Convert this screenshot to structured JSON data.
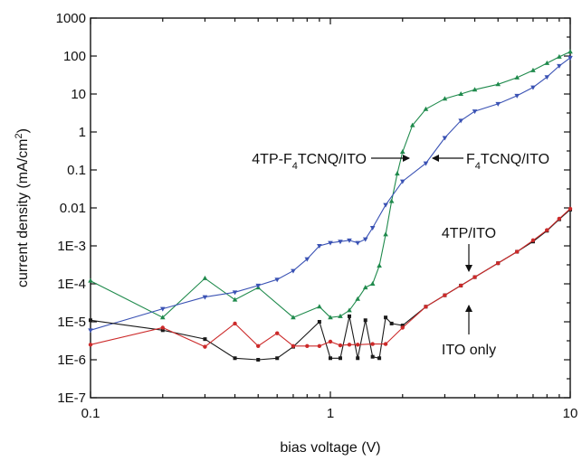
{
  "chart_data": {
    "type": "scatter",
    "x_scale": "log",
    "y_scale": "log",
    "xlim": [
      0.1,
      10
    ],
    "ylim": [
      1e-07,
      1000
    ],
    "xlabel": "bias voltage (V)",
    "ylabel_parts": {
      "main": "current density (mA/cm",
      "sup": "2",
      "end": ")"
    },
    "x_ticks": [
      {
        "value": 0.1,
        "label": "0.1"
      },
      {
        "value": 1,
        "label": "1"
      },
      {
        "value": 10,
        "label": "10"
      }
    ],
    "y_ticks": [
      {
        "value": 1000,
        "label": "1000"
      },
      {
        "value": 100,
        "label": "100"
      },
      {
        "value": 10,
        "label": "10"
      },
      {
        "value": 1,
        "label": "1"
      },
      {
        "value": 0.1,
        "label": "0.1"
      },
      {
        "value": 0.01,
        "label": "0.01"
      },
      {
        "value": 0.001,
        "label": "1E-3"
      },
      {
        "value": 0.0001,
        "label": "1E-4"
      },
      {
        "value": 1e-05,
        "label": "1E-5"
      },
      {
        "value": 1e-06,
        "label": "1E-6"
      },
      {
        "value": 1e-07,
        "label": "1E-7"
      }
    ],
    "grid": false,
    "series": [
      {
        "color": "#1f8a4c",
        "marker": "triangle-up",
        "label_parts": {
          "a": "4TP-F",
          "sub": "4",
          "b": "TCNQ/ITO"
        },
        "points": [
          [
            0.1,
            0.00012
          ],
          [
            0.2,
            1.3e-05
          ],
          [
            0.3,
            0.00014
          ],
          [
            0.4,
            3.8e-05
          ],
          [
            0.5,
            8e-05
          ],
          [
            0.7,
            1.3e-05
          ],
          [
            0.9,
            2.5e-05
          ],
          [
            1.0,
            1.3e-05
          ],
          [
            1.1,
            1.4e-05
          ],
          [
            1.2,
            2e-05
          ],
          [
            1.3,
            4e-05
          ],
          [
            1.4,
            8e-05
          ],
          [
            1.5,
            0.0001
          ],
          [
            1.6,
            0.0003
          ],
          [
            1.7,
            0.002
          ],
          [
            1.8,
            0.015
          ],
          [
            1.9,
            0.08
          ],
          [
            2.0,
            0.3
          ],
          [
            2.2,
            1.5
          ],
          [
            2.5,
            4.0
          ],
          [
            3.0,
            7.5
          ],
          [
            3.5,
            10
          ],
          [
            4.0,
            13
          ],
          [
            5.0,
            18
          ],
          [
            6.0,
            27
          ],
          [
            7.0,
            42
          ],
          [
            8.0,
            65
          ],
          [
            9.0,
            95
          ],
          [
            10.0,
            130
          ]
        ]
      },
      {
        "color": "#3a52b4",
        "marker": "triangle-down",
        "label_parts": {
          "a": "F",
          "sub": "4",
          "b": "TCNQ/ITO"
        },
        "points": [
          [
            0.1,
            6e-06
          ],
          [
            0.2,
            2.2e-05
          ],
          [
            0.3,
            4.5e-05
          ],
          [
            0.4,
            6e-05
          ],
          [
            0.5,
            9e-05
          ],
          [
            0.6,
            0.00013
          ],
          [
            0.7,
            0.00022
          ],
          [
            0.8,
            0.00045
          ],
          [
            0.9,
            0.001
          ],
          [
            1.0,
            0.0012
          ],
          [
            1.1,
            0.0013
          ],
          [
            1.2,
            0.0014
          ],
          [
            1.3,
            0.0012
          ],
          [
            1.4,
            0.0015
          ],
          [
            1.5,
            0.003
          ],
          [
            1.7,
            0.012
          ],
          [
            2.0,
            0.05
          ],
          [
            2.5,
            0.15
          ],
          [
            3.0,
            0.7
          ],
          [
            3.5,
            2.0
          ],
          [
            4.0,
            3.5
          ],
          [
            5.0,
            5.5
          ],
          [
            6.0,
            9.0
          ],
          [
            7.0,
            15
          ],
          [
            8.0,
            28
          ],
          [
            9.0,
            55
          ],
          [
            10.0,
            90
          ]
        ]
      },
      {
        "color": "#1a1a1a",
        "marker": "square",
        "label": "4TP/ITO",
        "points": [
          [
            0.1,
            1.1e-05
          ],
          [
            0.2,
            6e-06
          ],
          [
            0.3,
            3.5e-06
          ],
          [
            0.4,
            1.1e-06
          ],
          [
            0.5,
            1e-06
          ],
          [
            0.6,
            1.1e-06
          ],
          [
            0.7,
            2.2e-06
          ],
          [
            0.9,
            1e-05
          ],
          [
            1.0,
            1.1e-06
          ],
          [
            1.1,
            1.1e-06
          ],
          [
            1.2,
            1.4e-05
          ],
          [
            1.3,
            1.1e-06
          ],
          [
            1.4,
            1.1e-05
          ],
          [
            1.5,
            1.2e-06
          ],
          [
            1.6,
            1.1e-06
          ],
          [
            1.7,
            1.3e-05
          ],
          [
            1.8,
            9e-06
          ],
          [
            2.0,
            8e-06
          ],
          [
            2.5,
            2.5e-05
          ],
          [
            3.0,
            5e-05
          ],
          [
            3.5,
            9e-05
          ],
          [
            4.0,
            0.00015
          ],
          [
            5.0,
            0.00035
          ],
          [
            6.0,
            0.0007
          ],
          [
            7.0,
            0.0013
          ],
          [
            8.0,
            0.0025
          ],
          [
            9.0,
            0.005
          ],
          [
            10.0,
            0.009
          ]
        ]
      },
      {
        "color": "#cc2a2a",
        "marker": "circle",
        "label": "ITO only",
        "points": [
          [
            0.1,
            2.5e-06
          ],
          [
            0.2,
            7e-06
          ],
          [
            0.3,
            2.2e-06
          ],
          [
            0.4,
            9e-06
          ],
          [
            0.5,
            2.3e-06
          ],
          [
            0.6,
            5e-06
          ],
          [
            0.7,
            2.3e-06
          ],
          [
            0.8,
            2.3e-06
          ],
          [
            0.9,
            2.3e-06
          ],
          [
            1.0,
            3e-06
          ],
          [
            1.1,
            2.4e-06
          ],
          [
            1.2,
            2.5e-06
          ],
          [
            1.3,
            2.5e-06
          ],
          [
            1.5,
            2.6e-06
          ],
          [
            1.7,
            2.6e-06
          ],
          [
            2.0,
            7e-06
          ],
          [
            2.5,
            2.5e-05
          ],
          [
            3.0,
            5e-05
          ],
          [
            3.5,
            9e-05
          ],
          [
            4.0,
            0.00015
          ],
          [
            5.0,
            0.00035
          ],
          [
            6.0,
            0.0007
          ],
          [
            7.0,
            0.0014
          ],
          [
            8.0,
            0.0026
          ],
          [
            9.0,
            0.0052
          ],
          [
            10.0,
            0.0095
          ]
        ]
      }
    ]
  }
}
